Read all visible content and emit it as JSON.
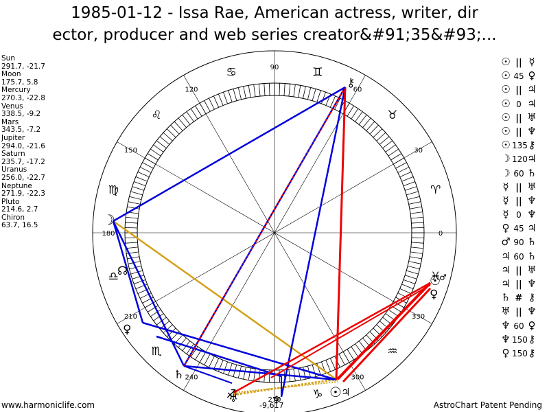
{
  "title": {
    "line1": "1985-01-12 - Issa Rae, American actress, writer, dir",
    "line2": "ector, producer and web series creator&#91;35&#93;..."
  },
  "planets": [
    {
      "name": "Sun",
      "pos": "291.7, -21.7"
    },
    {
      "name": "Moon",
      "pos": "175.7, 5.8"
    },
    {
      "name": "Mercury",
      "pos": "270.3, -22.8"
    },
    {
      "name": "Venus",
      "pos": "338.5, -9.2"
    },
    {
      "name": "Mars",
      "pos": "343.5, -7.2"
    },
    {
      "name": "Jupiter",
      "pos": "294.0, -21.6"
    },
    {
      "name": "Saturn",
      "pos": "235.7, -17.2"
    },
    {
      "name": "Uranus",
      "pos": "256.0, -22.7"
    },
    {
      "name": "Neptune",
      "pos": "271.9, -22.3"
    },
    {
      "name": "Pluto",
      "pos": "214.6, 2.7"
    },
    {
      "name": "Chiron",
      "pos": "63.7, 16.5"
    }
  ],
  "aspects": [
    {
      "a": "☉",
      "s": "||",
      "b": "☿"
    },
    {
      "a": "☉",
      "s": "45",
      "b": "♀"
    },
    {
      "a": "☉",
      "s": "||",
      "b": "♃"
    },
    {
      "a": "☉",
      "s": "0",
      "b": "♃"
    },
    {
      "a": "☉",
      "s": "||",
      "b": "♅"
    },
    {
      "a": "☉",
      "s": "||",
      "b": "♆"
    },
    {
      "a": "☉",
      "s": "135",
      "b": "⚷"
    },
    {
      "a": "☽",
      "s": "120",
      "b": "♃"
    },
    {
      "a": "☽",
      "s": "60",
      "b": "♄"
    },
    {
      "a": "☿",
      "s": "||",
      "b": "♅"
    },
    {
      "a": "☿",
      "s": "||",
      "b": "♆"
    },
    {
      "a": "☿",
      "s": "0",
      "b": "♆"
    },
    {
      "a": "♀",
      "s": "45",
      "b": "♃"
    },
    {
      "a": "♂",
      "s": "90",
      "b": "♄"
    },
    {
      "a": "♃",
      "s": "60",
      "b": "♄"
    },
    {
      "a": "♃",
      "s": "||",
      "b": "♅"
    },
    {
      "a": "♃",
      "s": "||",
      "b": "♆"
    },
    {
      "a": "♄",
      "s": "#",
      "b": "⚷"
    },
    {
      "a": "♅",
      "s": "||",
      "b": "♆"
    },
    {
      "a": "♆",
      "s": "60",
      "b": "♀"
    },
    {
      "a": "♆",
      "s": "150",
      "b": "⚷"
    },
    {
      "a": "♀",
      "s": "150",
      "b": "⚷"
    }
  ],
  "wheel": {
    "degree_labels": [
      "0",
      "30",
      "60",
      "90",
      "120",
      "150",
      "180",
      "210",
      "240",
      "270",
      "300",
      "330"
    ],
    "signs": [
      {
        "name": "aries",
        "glyph": "♈"
      },
      {
        "name": "taurus",
        "glyph": "♉"
      },
      {
        "name": "gemini",
        "glyph": "♊"
      },
      {
        "name": "cancer",
        "glyph": "♋"
      },
      {
        "name": "leo",
        "glyph": "♌"
      },
      {
        "name": "virgo",
        "glyph": "♍"
      },
      {
        "name": "libra",
        "glyph": "♎"
      },
      {
        "name": "scorpio",
        "glyph": "♏"
      },
      {
        "name": "sagittarius",
        "glyph": "♐"
      },
      {
        "name": "capricorn",
        "glyph": "♑"
      },
      {
        "name": "aquarius",
        "glyph": "♒"
      },
      {
        "name": "pisces",
        "glyph": "♓"
      }
    ],
    "node_glyph": "☊",
    "node_label": "-9,617",
    "colors": {
      "blue": "#0000dd",
      "red": "#ee0000",
      "gold": "#d4a017"
    }
  },
  "footer": {
    "left": "www.harmoniclife.com",
    "right": "AstroChart Patent Pending"
  }
}
